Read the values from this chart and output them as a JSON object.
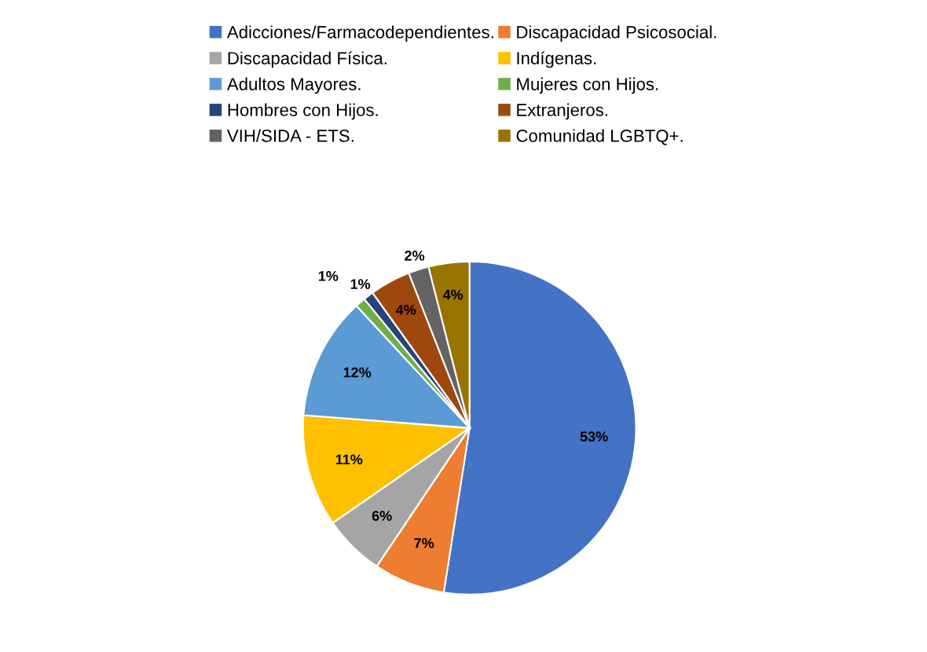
{
  "chart_data": {
    "type": "pie",
    "categories": [
      "Adicciones/Farmacodependientes.",
      "Discapacidad Psicosocial.",
      "Discapacidad Física.",
      "Indígenas.",
      "Adultos Mayores.",
      "Mujeres con Hijos.",
      "Hombres con Hijos.",
      "Extranjeros.",
      "VIH/SIDA - ETS.",
      "Comunidad LGBTQ+."
    ],
    "values": [
      53,
      7,
      6,
      11,
      12,
      1,
      1,
      4,
      2,
      4
    ],
    "colors": [
      "#4472c4",
      "#ed7d31",
      "#a5a5a5",
      "#ffc000",
      "#5b9bd5",
      "#70ad47",
      "#264478",
      "#9e480e",
      "#636363",
      "#997300"
    ],
    "value_labels": [
      "53%",
      "7%",
      "6%",
      "11%",
      "12%",
      "1%",
      "1%",
      "4%",
      "2%",
      "4%"
    ],
    "legend": "top"
  }
}
